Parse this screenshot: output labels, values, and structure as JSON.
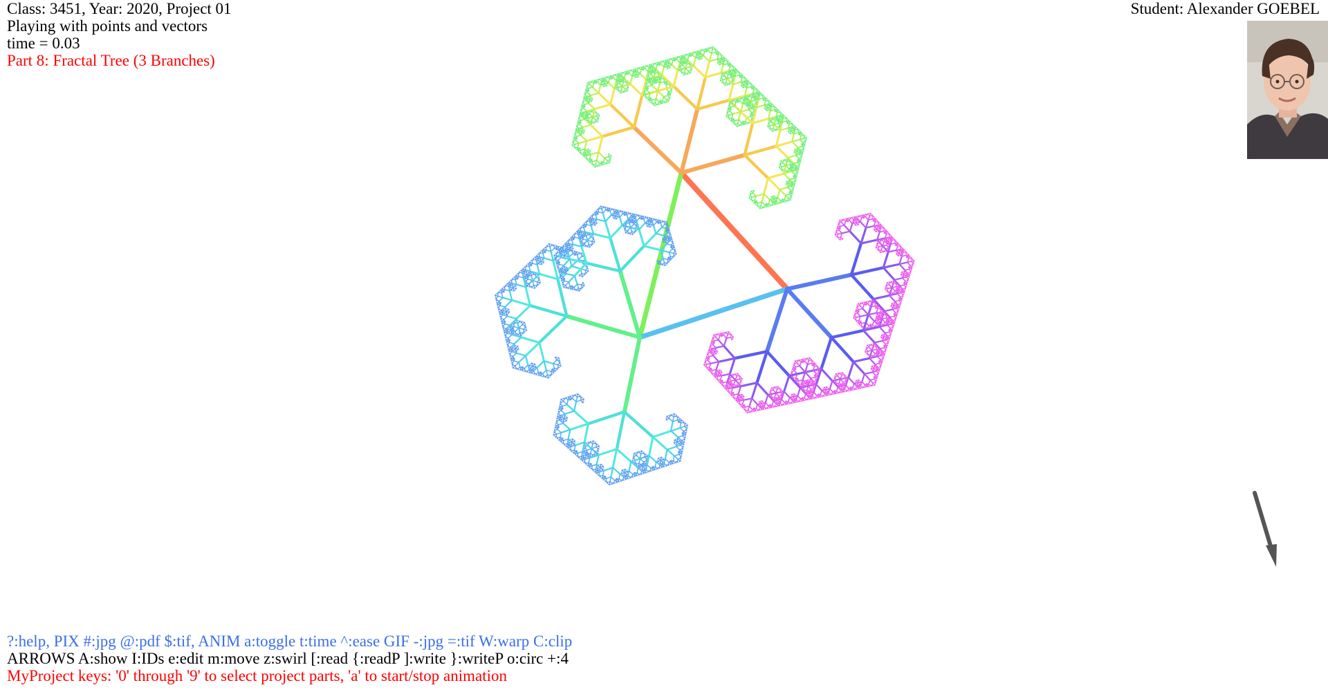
{
  "header": {
    "class_info": "Class: 3451, Year: 2020, Project 01",
    "subtitle": "Playing with points and vectors",
    "time_readout": "time = 0.03",
    "part_title": "Part 8: Fractal Tree (3 Branches)",
    "student_name": "Student: Alexander GOEBEL"
  },
  "footer": {
    "help_line": "?:help, PIX #:jpg @:pdf $:tif, ANIM a:toggle t:time ^:ease GIF -:jpg =:tif W:warp C:clip",
    "arrows_line": "ARROWS A:show I:IDs e:edit m:move z:swirl [:read {:readP ]:write }:writeP o:circ +:4",
    "mykeys_line": "MyProject keys: '0' through '9' to select project parts, 'a' to start/stop animation"
  },
  "fractal": {
    "branches": 3,
    "depth": 7,
    "colors": {
      "root": "#ff6a4d",
      "up": "#7ff05a",
      "left": "#4fe0d8",
      "right": "#5a7cf0"
    }
  },
  "colors": {
    "hud_text": "#000000",
    "part_title": "#ff0000",
    "help_text": "#3a6ee8",
    "mykeys_text": "#ff0000",
    "arrow": "#555555"
  },
  "icons": {
    "arrow_cursor": "arrow-icon",
    "student_photo": "student-photo-icon"
  }
}
